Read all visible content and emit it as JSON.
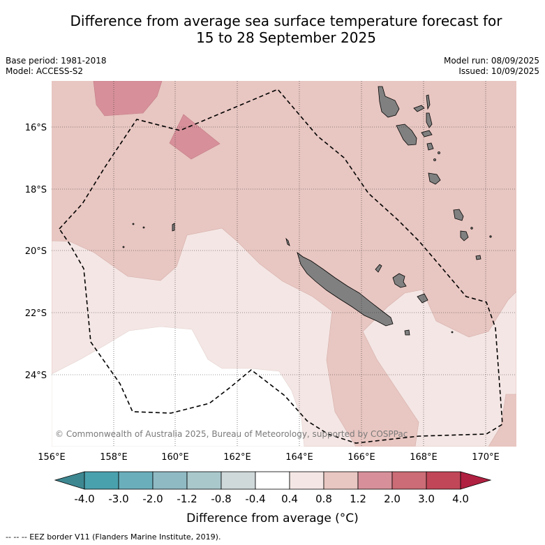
{
  "title_line1": "Difference from average sea surface temperature forecast for",
  "title_line2": "15 to 28 September 2025",
  "meta": {
    "base_period": "Base period: 1981-2018",
    "model": "Model: ACCESS-S2",
    "model_run": "Model run: 08/09/2025",
    "issued": "Issued: 10/09/2025"
  },
  "map": {
    "copyright": "© Commonwealth of Australia 2025, Bureau of Meteorology, supported by COSPPac",
    "lon_ticks": [
      "156°E",
      "158°E",
      "160°E",
      "162°E",
      "164°E",
      "166°E",
      "168°E",
      "170°E"
    ],
    "lat_ticks": [
      "16°S",
      "18°S",
      "20°S",
      "22°S",
      "24°S"
    ]
  },
  "colorbar": {
    "title": "Difference from average (°C)",
    "labels": [
      "-4.0",
      "-3.0",
      "-2.0",
      "-1.2",
      "-0.8",
      "-0.4",
      "0.4",
      "0.8",
      "1.2",
      "2.0",
      "3.0",
      "4.0"
    ],
    "colors": [
      "#4aa1ae",
      "#6aaebb",
      "#8fbac4",
      "#a9c8cc",
      "#cfd9da",
      "#ffffff",
      "#f4e6e4",
      "#e8c6c1",
      "#d7909a",
      "#cc6c76",
      "#c04658"
    ],
    "under_color": "#3d8791",
    "over_color": "#b02040"
  },
  "footer": "--  --  -- EEZ border V11 (Flanders Marine Institute, 2019)."
}
